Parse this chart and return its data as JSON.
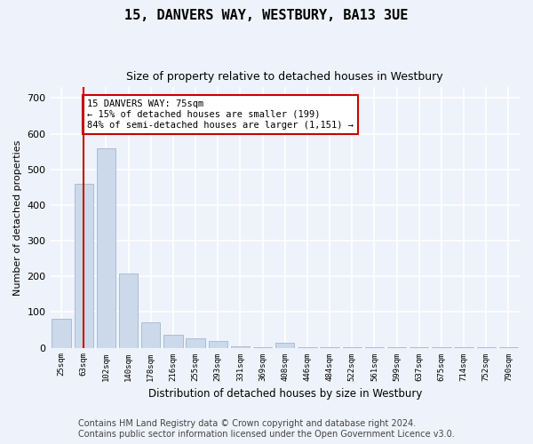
{
  "title": "15, DANVERS WAY, WESTBURY, BA13 3UE",
  "subtitle": "Size of property relative to detached houses in Westbury",
  "xlabel": "Distribution of detached houses by size in Westbury",
  "ylabel": "Number of detached properties",
  "bar_categories": [
    "25sqm",
    "63sqm",
    "102sqm",
    "140sqm",
    "178sqm",
    "216sqm",
    "255sqm",
    "293sqm",
    "331sqm",
    "369sqm",
    "408sqm",
    "446sqm",
    "484sqm",
    "522sqm",
    "561sqm",
    "599sqm",
    "637sqm",
    "675sqm",
    "714sqm",
    "752sqm",
    "790sqm"
  ],
  "bar_values": [
    82,
    460,
    560,
    207,
    70,
    36,
    27,
    20,
    3,
    2,
    15,
    2,
    2,
    1,
    1,
    1,
    1,
    1,
    1,
    1,
    1
  ],
  "bar_color": "#ccd9ea",
  "bar_edge_color": "#aabdd4",
  "property_line_x": 1.0,
  "property_line_color": "#cc0000",
  "annotation_text": "15 DANVERS WAY: 75sqm\n← 15% of detached houses are smaller (199)\n84% of semi-detached houses are larger (1,151) →",
  "annotation_box_color": "#ffffff",
  "annotation_box_edge_color": "#cc0000",
  "ylim": [
    0,
    730
  ],
  "yticks": [
    0,
    100,
    200,
    300,
    400,
    500,
    600,
    700
  ],
  "footer_line1": "Contains HM Land Registry data © Crown copyright and database right 2024.",
  "footer_line2": "Contains public sector information licensed under the Open Government Licence v3.0.",
  "background_color": "#eef2fa",
  "plot_background_color": "#eef2fa",
  "grid_color": "#ffffff",
  "title_fontsize": 11,
  "subtitle_fontsize": 9,
  "footer_fontsize": 7
}
